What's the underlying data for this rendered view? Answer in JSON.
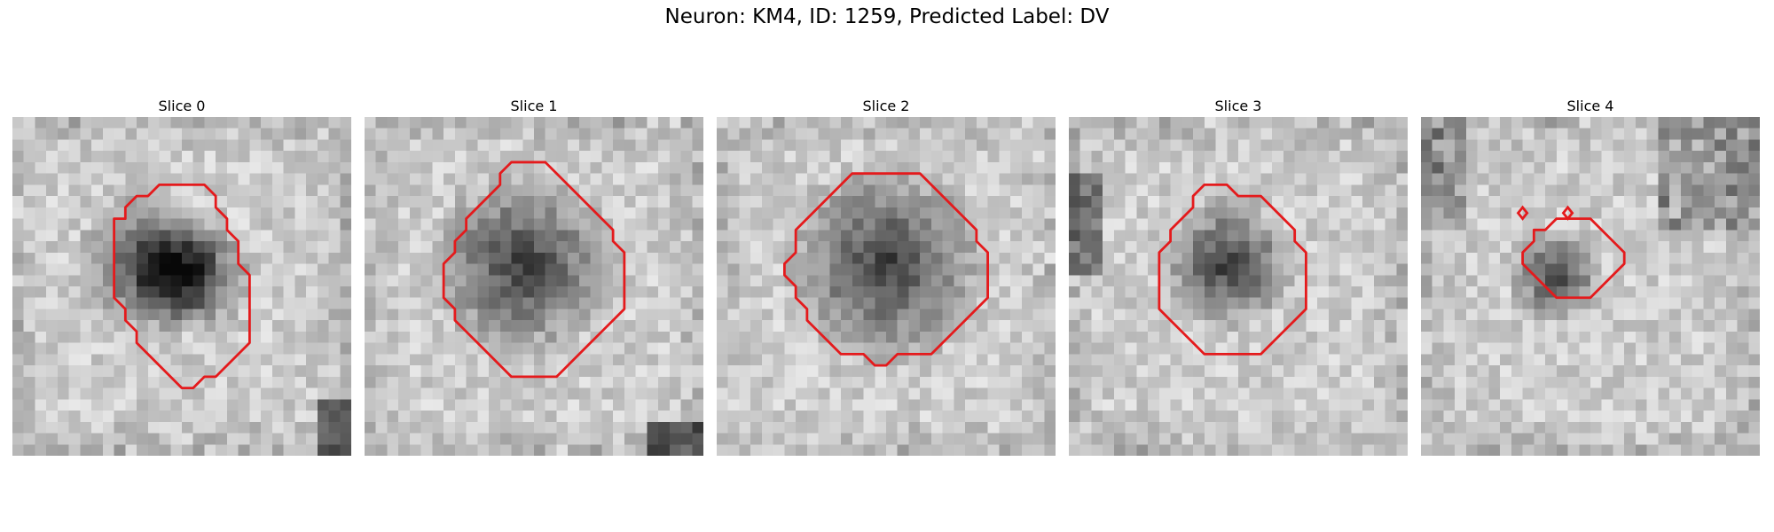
{
  "figure": {
    "title": "Neuron: KM4, ID: 1259, Predicted Label: DV"
  },
  "colors": {
    "contour": "#e41a1c",
    "background": "#ffffff"
  },
  "slices": [
    {
      "title": "Slice 0",
      "contour": [
        [
          15,
          6
        ],
        [
          13,
          6
        ],
        [
          12,
          7
        ],
        [
          11,
          7
        ],
        [
          10,
          8
        ],
        [
          10,
          9
        ],
        [
          9,
          9
        ],
        [
          9,
          10
        ],
        [
          9,
          11
        ],
        [
          9,
          12
        ],
        [
          9,
          13
        ],
        [
          9,
          14
        ],
        [
          9,
          15
        ],
        [
          9,
          16
        ],
        [
          10,
          17
        ],
        [
          10,
          18
        ],
        [
          11,
          19
        ],
        [
          11,
          20
        ],
        [
          12,
          21
        ],
        [
          13,
          22
        ],
        [
          14,
          23
        ],
        [
          15,
          24
        ],
        [
          16,
          24
        ],
        [
          17,
          23
        ],
        [
          18,
          23
        ],
        [
          19,
          22
        ],
        [
          20,
          21
        ],
        [
          21,
          20
        ],
        [
          21,
          19
        ],
        [
          21,
          18
        ],
        [
          21,
          17
        ],
        [
          21,
          16
        ],
        [
          21,
          15
        ],
        [
          21,
          14
        ],
        [
          20,
          13
        ],
        [
          20,
          12
        ],
        [
          20,
          11
        ],
        [
          19,
          10
        ],
        [
          19,
          9
        ],
        [
          18,
          8
        ],
        [
          18,
          7
        ],
        [
          17,
          6
        ]
      ],
      "dark_blobs": [
        [
          12,
          13,
          4.2
        ],
        [
          16,
          14,
          3.5
        ]
      ]
    },
    {
      "title": "Slice 1",
      "contour": [
        [
          13,
          4
        ],
        [
          16,
          4
        ],
        [
          17,
          5
        ],
        [
          18,
          6
        ],
        [
          19,
          7
        ],
        [
          20,
          8
        ],
        [
          21,
          9
        ],
        [
          22,
          10
        ],
        [
          22,
          11
        ],
        [
          23,
          12
        ],
        [
          23,
          13
        ],
        [
          23,
          14
        ],
        [
          23,
          15
        ],
        [
          23,
          16
        ],
        [
          23,
          17
        ],
        [
          22,
          18
        ],
        [
          21,
          19
        ],
        [
          20,
          20
        ],
        [
          19,
          21
        ],
        [
          18,
          22
        ],
        [
          17,
          23
        ],
        [
          16,
          23
        ],
        [
          15,
          23
        ],
        [
          14,
          23
        ],
        [
          13,
          23
        ],
        [
          12,
          22
        ],
        [
          11,
          21
        ],
        [
          10,
          20
        ],
        [
          9,
          19
        ],
        [
          8,
          18
        ],
        [
          8,
          17
        ],
        [
          7,
          16
        ],
        [
          7,
          15
        ],
        [
          7,
          14
        ],
        [
          7,
          13
        ],
        [
          8,
          12
        ],
        [
          8,
          11
        ],
        [
          9,
          10
        ],
        [
          9,
          9
        ],
        [
          10,
          8
        ],
        [
          11,
          7
        ],
        [
          12,
          6
        ],
        [
          12,
          5
        ]
      ],
      "dark_blobs": [
        [
          14,
          13,
          5.5
        ]
      ]
    },
    {
      "title": "Slice 2",
      "contour": [
        [
          13,
          5
        ],
        [
          18,
          5
        ],
        [
          19,
          6
        ],
        [
          20,
          7
        ],
        [
          21,
          8
        ],
        [
          22,
          9
        ],
        [
          23,
          10
        ],
        [
          23,
          11
        ],
        [
          24,
          12
        ],
        [
          24,
          13
        ],
        [
          24,
          14
        ],
        [
          24,
          15
        ],
        [
          24,
          16
        ],
        [
          23,
          17
        ],
        [
          22,
          18
        ],
        [
          21,
          19
        ],
        [
          20,
          20
        ],
        [
          19,
          21
        ],
        [
          18,
          21
        ],
        [
          17,
          21
        ],
        [
          16,
          21
        ],
        [
          15,
          22
        ],
        [
          14,
          22
        ],
        [
          13,
          21
        ],
        [
          12,
          21
        ],
        [
          11,
          21
        ],
        [
          10,
          20
        ],
        [
          9,
          19
        ],
        [
          8,
          18
        ],
        [
          8,
          17
        ],
        [
          7,
          16
        ],
        [
          7,
          15
        ],
        [
          6,
          14
        ],
        [
          6,
          13
        ],
        [
          7,
          12
        ],
        [
          7,
          11
        ],
        [
          7,
          10
        ],
        [
          8,
          9
        ],
        [
          9,
          8
        ],
        [
          10,
          7
        ],
        [
          11,
          6
        ],
        [
          12,
          5
        ]
      ],
      "dark_blobs": [
        [
          15,
          13,
          6.0
        ]
      ]
    },
    {
      "title": "Slice 3",
      "contour": [
        [
          12,
          6
        ],
        [
          14,
          6
        ],
        [
          15,
          7
        ],
        [
          17,
          7
        ],
        [
          18,
          8
        ],
        [
          19,
          9
        ],
        [
          20,
          10
        ],
        [
          20,
          11
        ],
        [
          21,
          12
        ],
        [
          21,
          13
        ],
        [
          21,
          14
        ],
        [
          21,
          15
        ],
        [
          21,
          16
        ],
        [
          21,
          17
        ],
        [
          20,
          18
        ],
        [
          19,
          19
        ],
        [
          18,
          20
        ],
        [
          17,
          21
        ],
        [
          16,
          21
        ],
        [
          15,
          21
        ],
        [
          14,
          21
        ],
        [
          13,
          21
        ],
        [
          12,
          21
        ],
        [
          11,
          20
        ],
        [
          10,
          19
        ],
        [
          9,
          18
        ],
        [
          8,
          17
        ],
        [
          8,
          16
        ],
        [
          8,
          15
        ],
        [
          8,
          14
        ],
        [
          8,
          13
        ],
        [
          8,
          12
        ],
        [
          9,
          11
        ],
        [
          9,
          10
        ],
        [
          10,
          9
        ],
        [
          11,
          8
        ],
        [
          11,
          7
        ]
      ],
      "dark_blobs": [
        [
          14,
          13,
          4.0
        ]
      ]
    },
    {
      "title": "Slice 4",
      "contour": [
        [
          10,
          10
        ],
        [
          10,
          11
        ],
        [
          9,
          12
        ],
        [
          9,
          13
        ],
        [
          10,
          14
        ],
        [
          11,
          15
        ],
        [
          12,
          16
        ],
        [
          13,
          16
        ],
        [
          14,
          16
        ],
        [
          15,
          16
        ],
        [
          16,
          15
        ],
        [
          17,
          14
        ],
        [
          18,
          13
        ],
        [
          18,
          12
        ],
        [
          17,
          11
        ],
        [
          16,
          10
        ],
        [
          15,
          9
        ],
        [
          14,
          9
        ],
        [
          13,
          9
        ],
        [
          12,
          9
        ],
        [
          11,
          10
        ]
      ],
      "contour_extra": [
        [
          [
            8.6,
            8.5
          ],
          [
            9,
            8
          ],
          [
            9.4,
            8.5
          ],
          [
            9,
            9
          ]
        ],
        [
          [
            12.6,
            8.5
          ],
          [
            13,
            8
          ],
          [
            13.4,
            8.5
          ],
          [
            13,
            9
          ]
        ]
      ],
      "dark_blobs": [
        [
          12,
          14,
          2.8
        ]
      ]
    }
  ]
}
